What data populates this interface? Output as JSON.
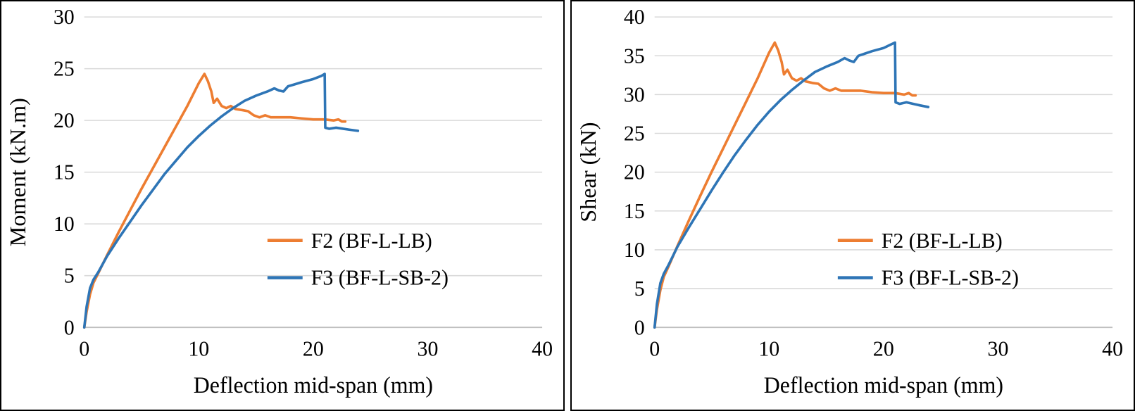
{
  "page": {
    "background": "#ffffff",
    "panel_border_color": "#000000"
  },
  "chart_data": [
    {
      "type": "line",
      "title": "",
      "xlabel": "Deflection mid-span (mm)",
      "ylabel": "Moment (kN.m)",
      "xlim": [
        0,
        40
      ],
      "ylim": [
        0,
        30
      ],
      "xticks": [
        0,
        10,
        20,
        30,
        40
      ],
      "yticks": [
        0,
        5,
        10,
        15,
        20,
        25,
        30
      ],
      "grid": "horizontal",
      "gridline_color": "#D9D9D9",
      "axis_line_color": "#BFBFBF",
      "legend_position": "inside-right",
      "legend": {
        "x": 0.4,
        "y": 0.72,
        "dy": 0.12
      },
      "series": [
        {
          "name": "F2 (BF-L-LB)",
          "color": "#ED7D31",
          "points": [
            [
              0,
              0
            ],
            [
              0.2,
              1.5
            ],
            [
              0.5,
              3.2
            ],
            [
              0.8,
              4.3
            ],
            [
              1.2,
              5.2
            ],
            [
              2,
              7
            ],
            [
              3,
              9.2
            ],
            [
              4,
              11.3
            ],
            [
              5,
              13.4
            ],
            [
              6,
              15.4
            ],
            [
              7,
              17.4
            ],
            [
              8,
              19.4
            ],
            [
              9,
              21.4
            ],
            [
              10,
              23.6
            ],
            [
              10.5,
              24.5
            ],
            [
              10.8,
              23.8
            ],
            [
              11.1,
              22.8
            ],
            [
              11.3,
              21.7
            ],
            [
              11.6,
              22.1
            ],
            [
              12,
              21.4
            ],
            [
              12.4,
              21.2
            ],
            [
              12.8,
              21.4
            ],
            [
              13.2,
              21.1
            ],
            [
              13.8,
              21.0
            ],
            [
              14.3,
              20.9
            ],
            [
              14.8,
              20.5
            ],
            [
              15.3,
              20.3
            ],
            [
              15.8,
              20.5
            ],
            [
              16.3,
              20.3
            ],
            [
              17,
              20.3
            ],
            [
              18,
              20.3
            ],
            [
              19,
              20.2
            ],
            [
              20,
              20.1
            ],
            [
              21,
              20.1
            ],
            [
              21.8,
              20.0
            ],
            [
              22.2,
              20.1
            ],
            [
              22.5,
              19.9
            ],
            [
              22.8,
              19.9
            ]
          ]
        },
        {
          "name": "F3 (BF-L-SB-2)",
          "color": "#2E75B6",
          "points": [
            [
              0,
              0
            ],
            [
              0.2,
              2
            ],
            [
              0.5,
              3.8
            ],
            [
              0.8,
              4.6
            ],
            [
              1.2,
              5.3
            ],
            [
              2,
              6.9
            ],
            [
              3,
              8.6
            ],
            [
              4,
              10.2
            ],
            [
              5,
              11.8
            ],
            [
              6,
              13.3
            ],
            [
              7,
              14.8
            ],
            [
              8,
              16.1
            ],
            [
              9,
              17.4
            ],
            [
              10,
              18.5
            ],
            [
              11,
              19.5
            ],
            [
              12,
              20.4
            ],
            [
              13,
              21.2
            ],
            [
              14,
              21.9
            ],
            [
              15,
              22.4
            ],
            [
              16,
              22.8
            ],
            [
              16.6,
              23.1
            ],
            [
              17,
              22.9
            ],
            [
              17.4,
              22.8
            ],
            [
              17.8,
              23.3
            ],
            [
              18.4,
              23.5
            ],
            [
              19,
              23.7
            ],
            [
              20,
              24.0
            ],
            [
              20.7,
              24.3
            ],
            [
              21,
              24.5
            ],
            [
              21.05,
              19.3
            ],
            [
              21.4,
              19.2
            ],
            [
              22,
              19.3
            ],
            [
              22.6,
              19.2
            ],
            [
              23.2,
              19.1
            ],
            [
              23.9,
              19.0
            ]
          ]
        }
      ]
    },
    {
      "type": "line",
      "title": "",
      "xlabel": "Deflection mid-span (mm)",
      "ylabel": "Shear (kN)",
      "xlim": [
        0,
        40
      ],
      "ylim": [
        0,
        40
      ],
      "xticks": [
        0,
        10,
        20,
        30,
        40
      ],
      "yticks": [
        0,
        5,
        10,
        15,
        20,
        25,
        30,
        35,
        40
      ],
      "grid": "horizontal",
      "gridline_color": "#D9D9D9",
      "axis_line_color": "#BFBFBF",
      "legend_position": "inside-right",
      "legend": {
        "x": 0.4,
        "y": 0.72,
        "dy": 0.12
      },
      "series": [
        {
          "name": "F2 (BF-L-LB)",
          "color": "#ED7D31",
          "points": [
            [
              0,
              0
            ],
            [
              0.2,
              2.3
            ],
            [
              0.5,
              4.8
            ],
            [
              0.8,
              6.5
            ],
            [
              1.2,
              7.8
            ],
            [
              2,
              10.5
            ],
            [
              3,
              13.8
            ],
            [
              4,
              17.0
            ],
            [
              5,
              20.1
            ],
            [
              6,
              23.1
            ],
            [
              7,
              26.1
            ],
            [
              8,
              29.1
            ],
            [
              9,
              32.1
            ],
            [
              10,
              35.4
            ],
            [
              10.5,
              36.7
            ],
            [
              10.8,
              35.7
            ],
            [
              11.1,
              34.2
            ],
            [
              11.3,
              32.6
            ],
            [
              11.6,
              33.2
            ],
            [
              12,
              32.1
            ],
            [
              12.4,
              31.8
            ],
            [
              12.8,
              32.1
            ],
            [
              13.2,
              31.7
            ],
            [
              13.8,
              31.5
            ],
            [
              14.3,
              31.4
            ],
            [
              14.8,
              30.8
            ],
            [
              15.3,
              30.5
            ],
            [
              15.8,
              30.8
            ],
            [
              16.3,
              30.5
            ],
            [
              17,
              30.5
            ],
            [
              18,
              30.5
            ],
            [
              19,
              30.3
            ],
            [
              20,
              30.2
            ],
            [
              21,
              30.2
            ],
            [
              21.8,
              30.0
            ],
            [
              22.2,
              30.2
            ],
            [
              22.5,
              29.9
            ],
            [
              22.8,
              29.9
            ]
          ]
        },
        {
          "name": "F3 (BF-L-SB-2)",
          "color": "#2E75B6",
          "points": [
            [
              0,
              0
            ],
            [
              0.2,
              3.0
            ],
            [
              0.5,
              5.7
            ],
            [
              0.8,
              6.9
            ],
            [
              1.2,
              8.0
            ],
            [
              2,
              10.4
            ],
            [
              3,
              12.9
            ],
            [
              4,
              15.3
            ],
            [
              5,
              17.7
            ],
            [
              6,
              20.0
            ],
            [
              7,
              22.2
            ],
            [
              8,
              24.2
            ],
            [
              9,
              26.1
            ],
            [
              10,
              27.8
            ],
            [
              11,
              29.3
            ],
            [
              12,
              30.6
            ],
            [
              13,
              31.8
            ],
            [
              14,
              32.9
            ],
            [
              15,
              33.6
            ],
            [
              16,
              34.2
            ],
            [
              16.6,
              34.7
            ],
            [
              17,
              34.4
            ],
            [
              17.4,
              34.2
            ],
            [
              17.8,
              35.0
            ],
            [
              18.4,
              35.3
            ],
            [
              19,
              35.6
            ],
            [
              20,
              36.0
            ],
            [
              20.7,
              36.5
            ],
            [
              21,
              36.7
            ],
            [
              21.05,
              29.0
            ],
            [
              21.4,
              28.8
            ],
            [
              22,
              29.0
            ],
            [
              22.6,
              28.8
            ],
            [
              23.2,
              28.6
            ],
            [
              23.9,
              28.4
            ]
          ]
        }
      ]
    }
  ]
}
